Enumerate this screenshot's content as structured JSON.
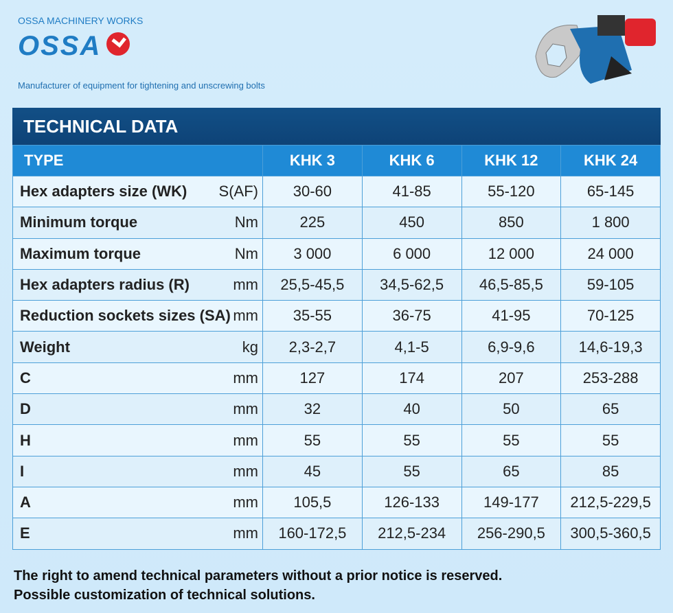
{
  "header": {
    "company": "OSSA MACHINERY WORKS",
    "logo": "OSSA",
    "tagline": "Manufacturer of equipment for tightening and unscrewing bolts"
  },
  "table": {
    "title": "TECHNICAL DATA",
    "columns": [
      "TYPE",
      "KHK 3",
      "KHK 6",
      "KHK 12",
      "KHK 24"
    ],
    "rows": [
      [
        "Hex adapters size (WK)",
        "S(AF)",
        "30-60",
        "41-85",
        "55-120",
        "65-145"
      ],
      [
        "Minimum torque",
        "Nm",
        "225",
        "450",
        "850",
        "1 800"
      ],
      [
        "Maximum torque",
        "Nm",
        "3 000",
        "6 000",
        "12 000",
        "24 000"
      ],
      [
        "Hex adapters radius (R)",
        "mm",
        "25,5-45,5",
        "34,5-62,5",
        "46,5-85,5",
        "59-105"
      ],
      [
        "Reduction sockets sizes (SA)",
        "mm",
        "35-55",
        "36-75",
        "41-95",
        "70-125"
      ],
      [
        "Weight",
        "kg",
        "2,3-2,7",
        "4,1-5",
        "6,9-9,6",
        "14,6-19,3"
      ],
      [
        "C",
        "mm",
        "127",
        "174",
        "207",
        "253-288"
      ],
      [
        "D",
        "mm",
        "32",
        "40",
        "50",
        "65"
      ],
      [
        "H",
        "mm",
        "55",
        "55",
        "55",
        "55"
      ],
      [
        "I",
        "mm",
        "45",
        "55",
        "65",
        "85"
      ],
      [
        "A",
        "mm",
        "105,5",
        "126-133",
        "149-177",
        "212,5-229,5"
      ],
      [
        "E",
        "mm",
        "160-172,5",
        "212,5-234",
        "256-290,5",
        "300,5-360,5"
      ]
    ]
  },
  "footer": [
    "The right to amend technical parameters without a prior notice is reserved.",
    "Possible customization of technical solutions."
  ]
}
